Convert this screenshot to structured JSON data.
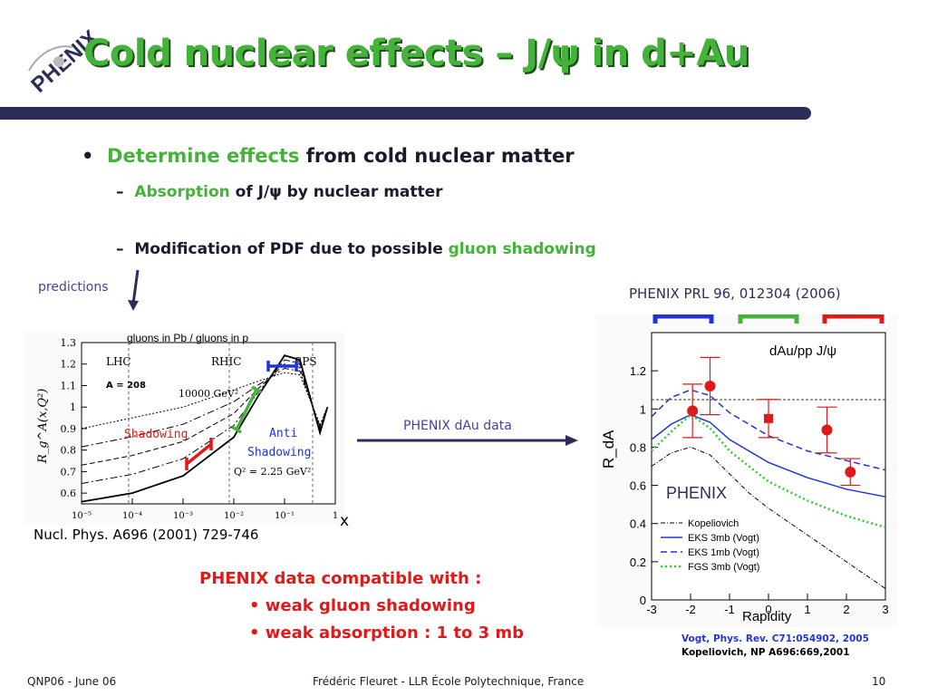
{
  "slide": {
    "title": "Cold nuclear effects – J/ψ in d+Au",
    "logo_text": "PHENIX",
    "bullet1": {
      "part1": "Determine effects",
      "part2": " from cold nuclear matter"
    },
    "sub1": {
      "part1": "Absorption",
      "part2": " of J/ψ by nuclear matter"
    },
    "sub2": {
      "part1": "Modification of PDF due to possible ",
      "part2": "gluon shadowing"
    },
    "predictions_label": "predictions",
    "left_plot": {
      "caption": "gluons in Pb / gluons in p",
      "y_ticks": [
        "1.3",
        "1.2",
        "1.1",
        "1",
        "0.9",
        "0.8",
        "0.7",
        "0.6"
      ],
      "x_ticks": [
        "10⁻⁵",
        "10⁻⁴",
        "10⁻³",
        "10⁻²",
        "10⁻¹",
        "1"
      ],
      "ylabel": "R_g^A(x,Q²)",
      "label_lhc": "LHC",
      "label_rhic": "RHIC",
      "label_sps": "SPS",
      "label_a": "A = 208",
      "label_q1": "10000 GeV²",
      "label_q2": "Q² = 2.25 GeV²",
      "shadowing": "Shadowing",
      "anti1": "Anti",
      "anti2": "Shadowing"
    },
    "x_axis_letter": "x",
    "nucl_ref": "Nucl. Phys. A696 (2001) 729-746",
    "arrow_label": "PHENIX dAu data",
    "prl_ref": "PHENIX PRL 96, 012304 (2006)",
    "right_plot": {
      "title": "dAu/pp  J/ψ",
      "ylabel": "R_dA",
      "xlabel": "Rapidity",
      "y_ticks": [
        "1.2",
        "1",
        "0.8",
        "0.6",
        "0.4",
        "0.2",
        "0"
      ],
      "x_ticks": [
        "-3",
        "-2",
        "-1",
        "0",
        "1",
        "2",
        "3"
      ],
      "phenix_label": "PHENIX",
      "legend": [
        "Kopeliovich",
        "EKS 3mb (Vogt)",
        "EKS 1mb (Vogt)",
        "FGS 3mb (Vogt)"
      ]
    },
    "conclusion": {
      "line1": "PHENIX data compatible with :",
      "line2": "• weak gluon shadowing",
      "line3": "• weak absorption : 1 to 3 mb"
    },
    "refs": {
      "ref1_a": "Vogt, Phys. Rev. C71:054902, 2005",
      "ref2": "Kopeliovich, NP A696:669,2001"
    },
    "footer": {
      "left": "QNP06 - June 06",
      "middle": "Frédéric Fleuret - LLR École Polytechnique, France",
      "page": "10"
    },
    "colors": {
      "title_green": "#44b339",
      "bar": "#2d2d5a",
      "red": "#e01a1a",
      "blue": "#2233dd"
    }
  },
  "chart_data": [
    {
      "type": "line",
      "title": "gluons in Pb / gluons in p",
      "xlabel": "x",
      "ylabel": "R_g^A(x,Q²)",
      "xscale": "log",
      "xlim": [
        1e-05,
        1
      ],
      "ylim": [
        0.55,
        1.3
      ],
      "series": [
        {
          "x": [
            1e-05,
            0.0001,
            0.001,
            0.01,
            0.03,
            0.1,
            0.2,
            0.5,
            0.7
          ],
          "y": [
            0.56,
            0.6,
            0.68,
            0.86,
            1.05,
            1.24,
            1.22,
            0.88,
            1.0
          ]
        },
        {
          "x": [
            1e-05,
            0.0001,
            0.001,
            0.01,
            0.03,
            0.1,
            0.2,
            0.5,
            0.7
          ],
          "y": [
            0.9,
            0.95,
            1.0,
            1.08,
            1.12,
            1.16,
            1.15,
            0.92,
            1.0
          ]
        }
      ]
    },
    {
      "type": "line",
      "title": "dAu/pp  J/ψ",
      "xlabel": "Rapidity",
      "ylabel": "R_dA",
      "xlim": [
        -3,
        3
      ],
      "ylim": [
        0,
        1.4
      ],
      "series": [
        {
          "name": "Kopeliovich",
          "x": [
            -3,
            -2.5,
            -2,
            -1.5,
            -1,
            -0.5,
            0,
            1,
            2,
            3
          ],
          "y": [
            0.7,
            0.77,
            0.8,
            0.76,
            0.66,
            0.56,
            0.48,
            0.34,
            0.2,
            0.06
          ]
        },
        {
          "name": "EKS 3mb (Vogt)",
          "x": [
            -3,
            -2.5,
            -2,
            -1.5,
            -1,
            0,
            1,
            2,
            3
          ],
          "y": [
            0.84,
            0.92,
            0.97,
            0.93,
            0.84,
            0.72,
            0.64,
            0.58,
            0.54
          ]
        },
        {
          "name": "EKS 1mb (Vogt)",
          "x": [
            -3,
            -2.5,
            -2,
            -1.5,
            -1,
            0,
            1,
            2,
            3
          ],
          "y": [
            0.96,
            1.06,
            1.1,
            1.07,
            0.98,
            0.86,
            0.78,
            0.73,
            0.68
          ]
        },
        {
          "name": "FGS 3mb (Vogt)",
          "x": [
            -3,
            -2.5,
            -2,
            -1.5,
            -1,
            0,
            1,
            2,
            3
          ],
          "y": [
            0.78,
            0.88,
            0.97,
            0.9,
            0.78,
            0.62,
            0.52,
            0.44,
            0.38
          ]
        },
        {
          "name": "PHENIX data",
          "x": [
            -1.95,
            -1.5,
            0,
            1.5,
            2.1
          ],
          "y": [
            0.99,
            1.12,
            0.95,
            0.89,
            0.67
          ],
          "err": [
            0.14,
            0.15,
            0.1,
            0.12,
            0.07
          ]
        }
      ]
    }
  ]
}
